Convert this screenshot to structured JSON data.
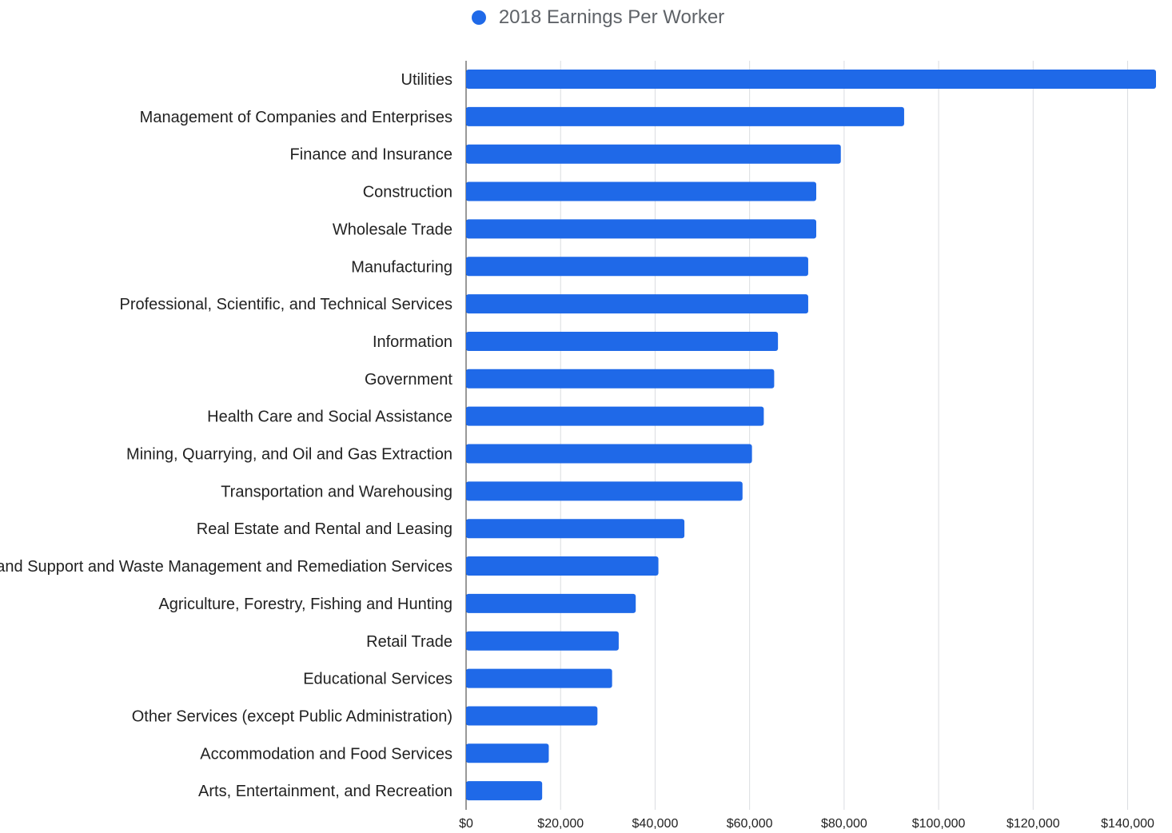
{
  "chart_data": {
    "type": "bar",
    "orientation": "horizontal",
    "legend_position": "top",
    "grid": true,
    "xlim": [
      0,
      146000
    ],
    "x_ticks": [
      0,
      20000,
      40000,
      60000,
      80000,
      100000,
      120000,
      140000
    ],
    "x_tick_labels": [
      "$0",
      "$20,000",
      "$40,000",
      "$60,000",
      "$80,000",
      "$100,000",
      "$120,000",
      "$140,000"
    ],
    "categories": [
      "Utilities",
      "Management of Companies and Enterprises",
      "Finance and Insurance",
      "Construction",
      "Wholesale Trade",
      "Manufacturing",
      "Professional, Scientific, and Technical Services",
      "Information",
      "Government",
      "Health Care and Social Assistance",
      "Mining, Quarrying, and Oil and Gas Extraction",
      "Transportation and Warehousing",
      "Real Estate and Rental and Leasing",
      "Administrative and Support and Waste Management and Remediation Services",
      "Agriculture, Forestry, Fishing and Hunting",
      "Retail Trade",
      "Educational Services",
      "Other Services (except Public Administration)",
      "Accommodation and Food Services",
      "Arts, Entertainment, and Recreation"
    ],
    "series": [
      {
        "name": "2018 Earnings Per Worker",
        "color": "#1f69e8",
        "values": [
          146000,
          92700,
          79300,
          74100,
          74100,
          72400,
          72400,
          66000,
          65200,
          63000,
          60500,
          58500,
          46200,
          40700,
          35900,
          32300,
          30900,
          27800,
          17500,
          16100
        ]
      }
    ]
  }
}
